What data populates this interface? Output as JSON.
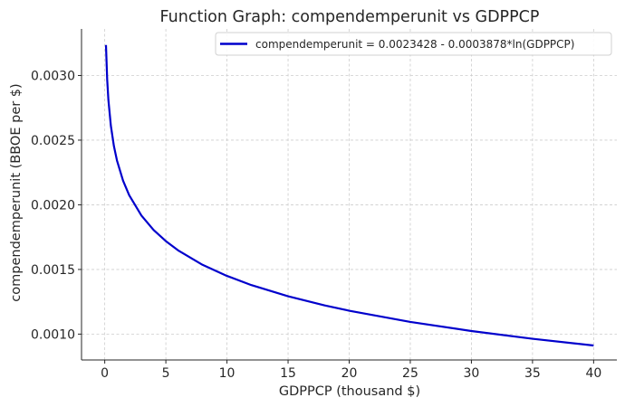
{
  "chart_data": {
    "type": "line",
    "title": "Function Graph: compendemperunit vs GDPPCP",
    "xlabel": "GDPPCP (thousand $)",
    "ylabel": "compendemperunit (BBOE per $)",
    "xlim": [
      -1.9,
      41.9
    ],
    "ylim": [
      0.0008,
      0.00336
    ],
    "x_ticks": [
      0,
      5,
      10,
      15,
      20,
      25,
      30,
      35,
      40
    ],
    "x_tick_labels": [
      "0",
      "5",
      "10",
      "15",
      "20",
      "25",
      "30",
      "35",
      "40"
    ],
    "y_ticks": [
      0.001,
      0.0015,
      0.002,
      0.0025,
      0.003
    ],
    "y_tick_labels": [
      "0.0010",
      "0.0015",
      "0.0020",
      "0.0025",
      "0.0030"
    ],
    "grid": true,
    "legend_position": "top-right",
    "series": [
      {
        "name": "compendemperunit = 0.0023428 - 0.0003878*ln(GDPPCP)",
        "color": "#0000cc",
        "intercept": 0.0023428,
        "coefficient": -0.0003878,
        "x": [
          0.1,
          0.2,
          0.3,
          0.5,
          0.75,
          1,
          1.5,
          2,
          3,
          4,
          5,
          6,
          8,
          10,
          12,
          15,
          18,
          20,
          25,
          30,
          35,
          40
        ],
        "y": [
          0.003236,
          0.002967,
          0.00281,
          0.002612,
          0.002454,
          0.002343,
          0.002186,
          0.002074,
          0.001917,
          0.001805,
          0.001719,
          0.001648,
          0.001536,
          0.00145,
          0.001379,
          0.001293,
          0.001222,
          0.001181,
          0.001094,
          0.001024,
          0.000964,
          0.000912
        ]
      }
    ]
  }
}
